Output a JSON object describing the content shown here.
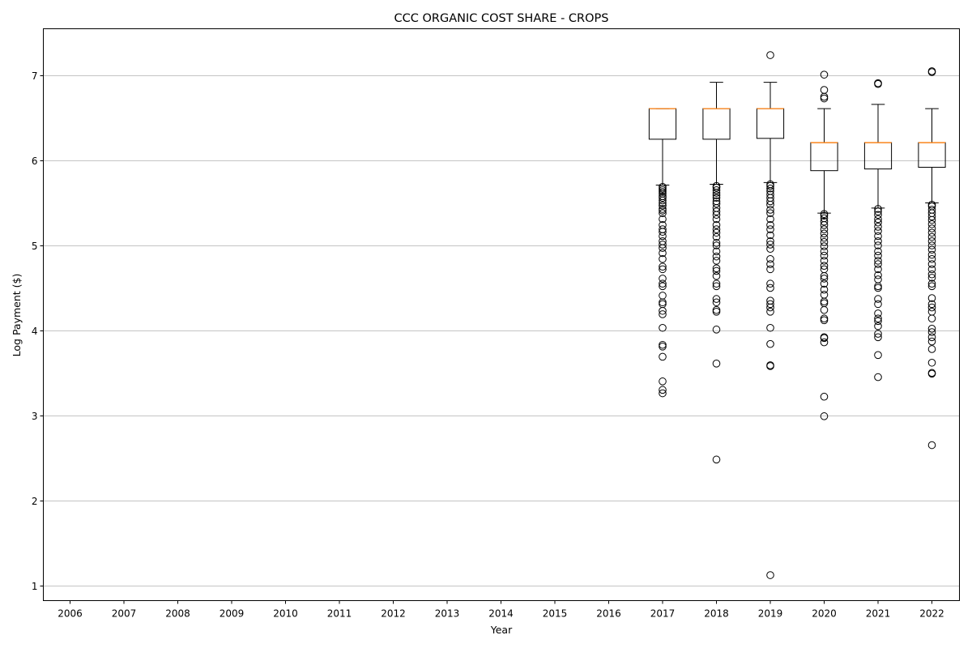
{
  "chart_data": {
    "type": "boxplot",
    "title": "CCC ORGANIC COST SHARE - CROPS",
    "xlabel": "Year",
    "ylabel": "Log Payment ($)",
    "categories": [
      "2006",
      "2007",
      "2008",
      "2009",
      "2010",
      "2011",
      "2012",
      "2013",
      "2014",
      "2015",
      "2016",
      "2017",
      "2018",
      "2019",
      "2020",
      "2021",
      "2022"
    ],
    "ylim": [
      0.82,
      7.55
    ],
    "yticks": [
      1,
      2,
      3,
      4,
      5,
      6,
      7
    ],
    "grid": "y",
    "colors": {
      "box": "#000000",
      "median": "#ff7f0e",
      "grid": "#b0b0b0"
    },
    "boxes": [
      {
        "year": "2017",
        "whisker_low": 5.71,
        "q1": 6.25,
        "median": 6.61,
        "q3": 6.61,
        "whisker_high": 6.61,
        "fliers": [
          3.26,
          3.3,
          3.4,
          3.69,
          3.81,
          3.83,
          4.03,
          4.19,
          4.23,
          4.31,
          4.33,
          4.41,
          4.52,
          4.55,
          4.61,
          4.72,
          4.75,
          4.84,
          4.91,
          4.97,
          5.01,
          5.05,
          5.11,
          5.16,
          5.19,
          5.24,
          5.31,
          5.38,
          5.41,
          5.43,
          5.47,
          5.5,
          5.53,
          5.56,
          5.58,
          5.61,
          5.63,
          5.65,
          5.67,
          5.69
        ]
      },
      {
        "year": "2018",
        "whisker_low": 5.72,
        "q1": 6.25,
        "median": 6.61,
        "q3": 6.61,
        "whisker_high": 6.92,
        "fliers": [
          2.48,
          3.61,
          4.01,
          4.22,
          4.24,
          4.33,
          4.37,
          4.52,
          4.55,
          4.64,
          4.7,
          4.73,
          4.82,
          4.87,
          4.93,
          5.0,
          5.03,
          5.1,
          5.15,
          5.19,
          5.24,
          5.31,
          5.36,
          5.4,
          5.44,
          5.49,
          5.52,
          5.56,
          5.59,
          5.62,
          5.65,
          5.68,
          5.7
        ]
      },
      {
        "year": "2019",
        "whisker_low": 5.74,
        "q1": 6.26,
        "median": 6.61,
        "q3": 6.61,
        "whisker_high": 6.92,
        "fliers": [
          1.12,
          3.58,
          3.59,
          3.84,
          4.03,
          4.22,
          4.27,
          4.31,
          4.35,
          4.5,
          4.55,
          4.72,
          4.78,
          4.84,
          4.96,
          5.01,
          5.05,
          5.12,
          5.19,
          5.24,
          5.31,
          5.38,
          5.42,
          5.48,
          5.52,
          5.56,
          5.6,
          5.64,
          5.67,
          5.7,
          5.72,
          7.24
        ]
      },
      {
        "year": "2020",
        "whisker_low": 5.38,
        "q1": 5.88,
        "median": 6.21,
        "q3": 6.21,
        "whisker_high": 6.61,
        "fliers": [
          2.99,
          3.22,
          3.86,
          3.91,
          3.92,
          4.12,
          4.14,
          4.24,
          4.32,
          4.34,
          4.42,
          4.48,
          4.55,
          4.61,
          4.64,
          4.72,
          4.76,
          4.82,
          4.88,
          4.93,
          4.99,
          5.04,
          5.09,
          5.14,
          5.19,
          5.24,
          5.28,
          5.32,
          5.35,
          5.37,
          6.73,
          6.75,
          6.83,
          7.01
        ]
      },
      {
        "year": "2021",
        "whisker_low": 5.44,
        "q1": 5.9,
        "median": 6.21,
        "q3": 6.21,
        "whisker_high": 6.66,
        "fliers": [
          3.45,
          3.71,
          3.92,
          3.96,
          4.05,
          4.11,
          4.14,
          4.2,
          4.31,
          4.37,
          4.5,
          4.52,
          4.6,
          4.65,
          4.72,
          4.78,
          4.82,
          4.88,
          4.93,
          5.0,
          5.05,
          5.11,
          5.17,
          5.22,
          5.27,
          5.31,
          5.36,
          5.4,
          5.43,
          6.9,
          6.91
        ]
      },
      {
        "year": "2022",
        "whisker_low": 5.5,
        "q1": 5.92,
        "median": 6.21,
        "q3": 6.21,
        "whisker_high": 6.61,
        "fliers": [
          2.65,
          3.49,
          3.5,
          3.62,
          3.78,
          3.87,
          3.92,
          3.98,
          4.02,
          4.14,
          4.22,
          4.27,
          4.31,
          4.38,
          4.52,
          4.55,
          4.62,
          4.66,
          4.72,
          4.78,
          4.84,
          4.89,
          4.95,
          5.0,
          5.05,
          5.1,
          5.15,
          5.2,
          5.25,
          5.3,
          5.34,
          5.38,
          5.42,
          5.46,
          5.48,
          7.04,
          7.05
        ]
      }
    ]
  }
}
